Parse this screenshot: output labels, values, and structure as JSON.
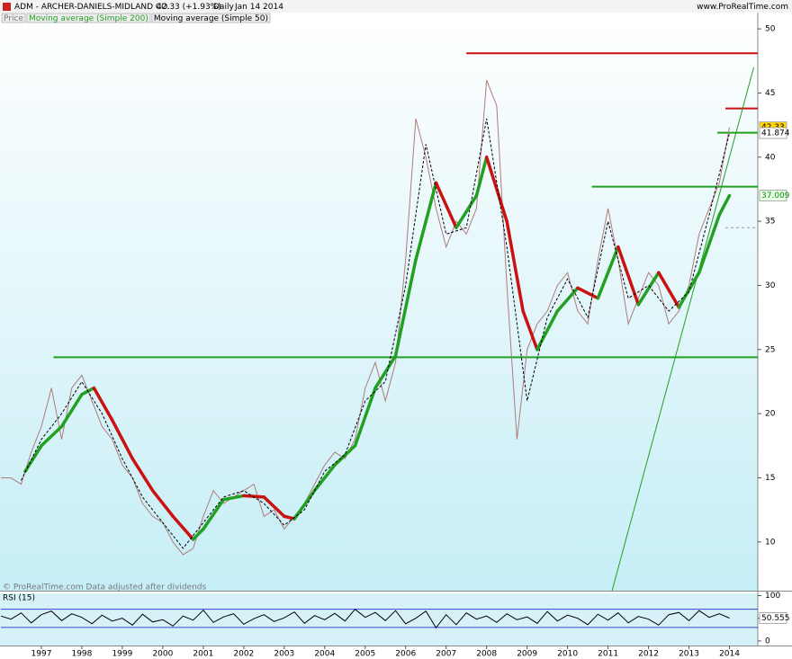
{
  "header": {
    "symbol": "ADM - ARCHER-DANIELS-MIDLAND CO.",
    "quote": "42.33 (+1.93%)",
    "period": "Daily",
    "date": "Jan 14 2014",
    "source": "www.ProRealTime.com"
  },
  "chart_data": [
    {
      "type": "line",
      "annotation": "© ProRealTime.com Data adjusted after dividends",
      "xlim": [
        1996,
        2014.7
      ],
      "ylim": [
        6.2,
        51.2
      ],
      "yticks": [
        10,
        15,
        20,
        25,
        30,
        35,
        40,
        45,
        50
      ],
      "series": [
        {
          "name": "Price",
          "color": "#b07a7a",
          "x": [
            1996,
            1996.25,
            1996.5,
            1996.75,
            1997,
            1997.25,
            1997.5,
            1997.75,
            1998,
            1998.25,
            1998.5,
            1998.75,
            1999,
            1999.25,
            1999.5,
            1999.75,
            2000,
            2000.25,
            2000.5,
            2000.75,
            2001,
            2001.25,
            2001.5,
            2001.75,
            2002,
            2002.25,
            2002.5,
            2002.75,
            2003,
            2003.25,
            2003.5,
            2003.75,
            2004,
            2004.25,
            2004.5,
            2004.75,
            2005,
            2005.25,
            2005.5,
            2005.75,
            2006,
            2006.25,
            2006.5,
            2006.75,
            2007,
            2007.25,
            2007.5,
            2007.75,
            2008,
            2008.25,
            2008.5,
            2008.75,
            2009,
            2009.25,
            2009.5,
            2009.75,
            2010,
            2010.25,
            2010.5,
            2010.75,
            2011,
            2011.25,
            2011.5,
            2011.75,
            2012,
            2012.25,
            2012.5,
            2012.75,
            2013,
            2013.25,
            2013.5,
            2013.75,
            2014
          ],
          "values": [
            15,
            15,
            14.5,
            17,
            19,
            22,
            18,
            22,
            23,
            21,
            19,
            18,
            16,
            15,
            13,
            12,
            11.5,
            10,
            9,
            9.5,
            12,
            14,
            13,
            13.5,
            14,
            14.5,
            12,
            12.5,
            11,
            12,
            13,
            14.5,
            16,
            17,
            16.5,
            18,
            22,
            24,
            21,
            24,
            32,
            43,
            40,
            36,
            33,
            35,
            34,
            36,
            46,
            44,
            30,
            18,
            25,
            27,
            28,
            30,
            31,
            28,
            27,
            32,
            36,
            32,
            27,
            29,
            31,
            30,
            27,
            28,
            30,
            34,
            36,
            38,
            42.33
          ]
        },
        {
          "name": "Moving average (Simple 200)",
          "color": "#22a022",
          "falling_color": "#cc1111",
          "x": [
            1996.6,
            1997,
            1997.5,
            1998,
            1998.3,
            1998.75,
            1999.25,
            1999.75,
            2000.25,
            2000.75,
            2001,
            2001.5,
            2002,
            2002.5,
            2003,
            2003.25,
            2003.75,
            2004.25,
            2004.75,
            2005.25,
            2005.75,
            2006.25,
            2006.75,
            2007.25,
            2007.75,
            2008,
            2008.5,
            2008.9,
            2009.25,
            2009.75,
            2010.25,
            2010.75,
            2011.25,
            2011.75,
            2012.25,
            2012.75,
            2013.25,
            2013.75,
            2014
          ],
          "values": [
            15.5,
            17.5,
            19,
            21.5,
            22,
            19.5,
            16.5,
            14,
            12,
            10.2,
            11,
            13.3,
            13.6,
            13.5,
            12,
            11.8,
            14,
            16,
            17.5,
            22,
            24.5,
            32,
            38,
            34.5,
            37,
            40,
            35,
            28,
            25,
            28,
            29.8,
            29,
            33,
            28.5,
            31,
            28.3,
            31,
            35.5,
            37
          ]
        },
        {
          "name": "Moving average (Simple 50)",
          "color": "#000000",
          "dashed": true,
          "x": [
            1996.5,
            1997,
            1997.5,
            1998,
            1998.5,
            1999,
            1999.5,
            2000,
            2000.5,
            2001,
            2001.5,
            2002,
            2002.5,
            2003,
            2003.5,
            2004,
            2004.5,
            2005,
            2005.5,
            2006,
            2006.5,
            2007,
            2007.5,
            2008,
            2008.5,
            2009,
            2009.5,
            2010,
            2010.5,
            2011,
            2011.5,
            2012,
            2012.5,
            2013,
            2013.5,
            2014
          ],
          "values": [
            14.8,
            18,
            20,
            22.5,
            20,
            16.5,
            13.5,
            11.5,
            9.5,
            11.5,
            13.5,
            14,
            13,
            11.3,
            12.5,
            15.5,
            16.8,
            21,
            22.5,
            30,
            41,
            34,
            34.5,
            43,
            33,
            21,
            27.5,
            30.5,
            27.5,
            35,
            29,
            30,
            28,
            29.5,
            35.5,
            41.874
          ]
        }
      ],
      "levels": [
        {
          "value": 24.4,
          "x": [
            1997.3,
            2014.7
          ],
          "color": "#22a022"
        },
        {
          "value": 48.1,
          "x": [
            2007.5,
            2014.7
          ],
          "color": "#cc1111"
        },
        {
          "value": 37.7,
          "x": [
            2010.6,
            2014.7
          ],
          "color": "#22a022"
        },
        {
          "value": 41.9,
          "x": [
            2013.7,
            2014.7
          ],
          "color": "#22a022"
        },
        {
          "value": 43.8,
          "x": [
            2013.9,
            2014.7
          ],
          "color": "#cc1111"
        },
        {
          "value": 34.5,
          "x": [
            2013.9,
            2014.7
          ],
          "color": "#999999",
          "dashed": true
        }
      ],
      "trend_line": {
        "x": [
          2011.1,
          2014.6
        ],
        "values": [
          6.2,
          47
        ],
        "color": "#22a022"
      },
      "last_values": [
        {
          "value": 42.33,
          "background": "#ffd700",
          "color": "#000000"
        },
        {
          "value": 41.874,
          "background": "#ffffff",
          "color": "#000000"
        },
        {
          "value": 37.009,
          "background": "#e6ffe6",
          "color": "#138a13"
        }
      ]
    },
    {
      "type": "line",
      "title": "RSI (15)",
      "xlim": [
        1996,
        2014.7
      ],
      "ylim": [
        -10,
        105
      ],
      "yticks": [
        0,
        50,
        100
      ],
      "xticks": [
        1997,
        1998,
        1999,
        2000,
        2001,
        2002,
        2003,
        2004,
        2005,
        2006,
        2007,
        2008,
        2009,
        2010,
        2011,
        2012,
        2013,
        2014
      ],
      "levels": [
        {
          "value": 70,
          "color": "#3344cc"
        },
        {
          "value": 30,
          "color": "#3344cc"
        }
      ],
      "series": [
        {
          "color": "#000000",
          "x": [
            1996,
            1996.25,
            1996.5,
            1996.75,
            1997,
            1997.25,
            1997.5,
            1997.75,
            1998,
            1998.25,
            1998.5,
            1998.75,
            1999,
            1999.25,
            1999.5,
            1999.75,
            2000,
            2000.25,
            2000.5,
            2000.75,
            2001,
            2001.25,
            2001.5,
            2001.75,
            2002,
            2002.25,
            2002.5,
            2002.75,
            2003,
            2003.25,
            2003.5,
            2003.75,
            2004,
            2004.25,
            2004.5,
            2004.75,
            2005,
            2005.25,
            2005.5,
            2005.75,
            2006,
            2006.25,
            2006.5,
            2006.75,
            2007,
            2007.25,
            2007.5,
            2007.75,
            2008,
            2008.25,
            2008.5,
            2008.75,
            2009,
            2009.25,
            2009.5,
            2009.75,
            2010,
            2010.25,
            2010.5,
            2010.75,
            2011,
            2011.25,
            2011.5,
            2011.75,
            2012,
            2012.25,
            2012.5,
            2012.75,
            2013,
            2013.25,
            2013.5,
            2013.75,
            2014
          ],
          "values": [
            55,
            48,
            62,
            40,
            58,
            66,
            45,
            60,
            52,
            38,
            57,
            44,
            50,
            35,
            59,
            42,
            47,
            33,
            55,
            46,
            68,
            41,
            53,
            60,
            37,
            49,
            58,
            43,
            51,
            64,
            39,
            56,
            47,
            61,
            44,
            70,
            52,
            63,
            45,
            67,
            38,
            50,
            66,
            29,
            58,
            36,
            62,
            48,
            55,
            41,
            60,
            47,
            53,
            39,
            65,
            44,
            57,
            50,
            36,
            59,
            46,
            62,
            40,
            54,
            48,
            35,
            58,
            63,
            45,
            67,
            52,
            60,
            50.555
          ]
        }
      ],
      "last_values": [
        {
          "value": 50.555,
          "background": "#ffffff",
          "color": "#000000"
        }
      ]
    }
  ]
}
